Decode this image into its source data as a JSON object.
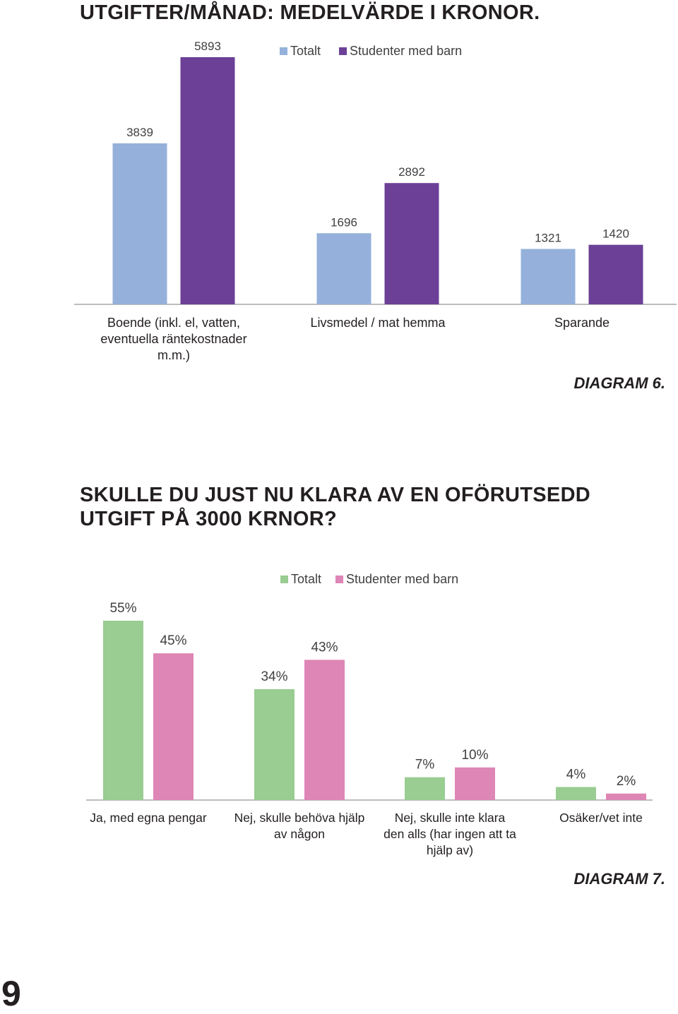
{
  "page": {
    "heading1": "UTGIFTER/MÅNAD: MEDELVÄRDE I KRONOR.",
    "diagram6_label": "DIAGRAM 6.",
    "heading2": "SKULLE DU JUST NU KLARA AV EN OFÖRUTSEDD UTGIFT PÅ 3000 KRNOR?",
    "diagram7_label": "DIAGRAM 7.",
    "page_number": "9"
  },
  "chart_data": [
    {
      "type": "bar",
      "categories": [
        [
          "Boende (inkl. el, vatten,",
          "eventuella räntekostnader",
          "m.m.)"
        ],
        [
          "Livsmedel / mat hemma"
        ],
        [
          "Sparande"
        ]
      ],
      "series": [
        {
          "name": "Totalt",
          "values": [
            3839,
            1696,
            1321
          ],
          "labels": [
            "3839",
            "1696",
            "1321"
          ],
          "color": "#95b1db"
        },
        {
          "name": "Studenter med barn",
          "values": [
            5893,
            2892,
            1420
          ],
          "labels": [
            "5893",
            "2892",
            "1420"
          ],
          "color": "#6b4096"
        }
      ],
      "ylim": [
        0,
        6500
      ],
      "legend": "top-center",
      "grid": false
    },
    {
      "type": "bar",
      "categories": [
        [
          "Ja, med egna pengar"
        ],
        [
          "Nej, skulle behöva hjälp",
          "av någon"
        ],
        [
          "Nej, skulle inte klara",
          "den alls (har ingen att ta",
          "hjälp av)"
        ],
        [
          "Osäker/vet inte"
        ]
      ],
      "series": [
        {
          "name": "Totalt",
          "values": [
            55,
            34,
            7,
            4
          ],
          "labels": [
            "55%",
            "34%",
            "7%",
            "4%"
          ],
          "color": "#99cd91"
        },
        {
          "name": "Studenter med barn",
          "values": [
            45,
            43,
            10,
            2
          ],
          "labels": [
            "45%",
            "43%",
            "10%",
            "2%"
          ],
          "color": "#de86b6"
        }
      ],
      "ylim": [
        0,
        60
      ],
      "unit": "%",
      "legend": "top-center",
      "grid": false
    }
  ]
}
